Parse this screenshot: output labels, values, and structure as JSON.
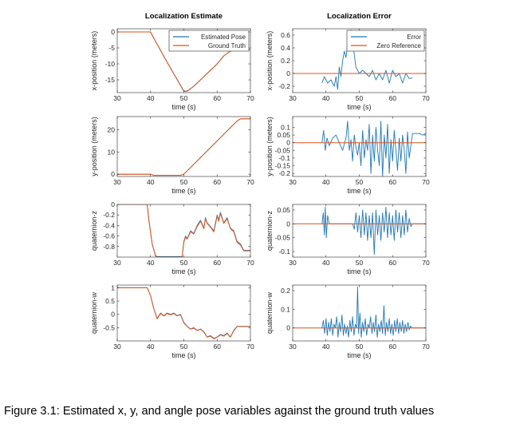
{
  "caption": "Figure 3.1: Estimated x, y, and angle pose variables against the ground truth values",
  "colors": {
    "blue": "#1f77b4",
    "orange": "#d95319",
    "axis": "#262626",
    "background": "#ffffff"
  },
  "chart_data": [
    {
      "type": "line",
      "title": "Localization Estimate",
      "xlabel": "time (s)",
      "ylabel": "x-position (meters)",
      "xlim": [
        30,
        70
      ],
      "ylim": [
        -19,
        1
      ],
      "xticks": [
        30,
        40,
        50,
        60,
        70
      ],
      "yticks": [
        0,
        -5,
        -10,
        -15
      ],
      "grid": false,
      "legend_position": "top-right",
      "series": [
        {
          "name": "Estimated Pose",
          "color": "#1f77b4",
          "x": [
            30,
            39,
            40,
            41,
            45,
            50,
            51,
            53,
            55,
            57,
            60,
            62,
            64,
            66,
            68,
            70
          ],
          "y": [
            0,
            0,
            0,
            -2,
            -9.5,
            -18.5,
            -18.5,
            -17,
            -15,
            -13,
            -10,
            -7.5,
            -6,
            -5.5,
            -5.5,
            -5.5
          ]
        },
        {
          "name": "Ground Truth",
          "color": "#d95319",
          "x": [
            30,
            39,
            40,
            41,
            45,
            50,
            51,
            53,
            55,
            57,
            60,
            62,
            64,
            66,
            68,
            70
          ],
          "y": [
            0,
            0,
            0,
            -2,
            -9.5,
            -18.6,
            -18.6,
            -17,
            -15,
            -13,
            -10,
            -7.5,
            -6,
            -5.5,
            -5.5,
            -5.5
          ]
        }
      ]
    },
    {
      "type": "line",
      "title": "Localization Error",
      "xlabel": "time (s)",
      "ylabel": "x-position (meters)",
      "xlim": [
        30,
        70
      ],
      "ylim": [
        -0.3,
        0.7
      ],
      "xticks": [
        30,
        40,
        50,
        60,
        70
      ],
      "yticks": [
        0.6,
        0.4,
        0.2,
        0,
        -0.2
      ],
      "grid": false,
      "legend_position": "top-right",
      "series": [
        {
          "name": "Error",
          "color": "#1f77b4",
          "x": [
            38.8,
            39.5,
            40.5,
            41.5,
            42.5,
            43,
            43.5,
            44,
            44.5,
            45,
            45.5,
            46,
            46.5,
            47,
            47.5,
            48,
            48.5,
            49,
            49.5,
            50,
            51,
            52,
            53,
            54,
            55,
            56,
            57,
            58,
            59,
            60,
            61,
            62,
            63,
            64,
            65,
            66
          ],
          "y": [
            -0.15,
            -0.05,
            -0.15,
            -0.1,
            -0.2,
            -0.05,
            -0.25,
            0.1,
            -0.05,
            0.2,
            0.35,
            0.25,
            0.45,
            0.55,
            0.68,
            0.5,
            0.3,
            0.1,
            0.05,
            0.0,
            0.05,
            0.0,
            -0.05,
            0.05,
            -0.1,
            0.0,
            -0.1,
            0.05,
            -0.15,
            0.05,
            -0.05,
            0.0,
            -0.15,
            0.0,
            -0.08,
            -0.07
          ]
        },
        {
          "name": "Zero Reference",
          "color": "#d95319",
          "x": [
            30,
            70
          ],
          "y": [
            0,
            0
          ]
        }
      ]
    },
    {
      "type": "line",
      "xlabel": "time (s)",
      "ylabel": "y-position (meters)",
      "xlim": [
        30,
        70
      ],
      "ylim": [
        -1,
        26
      ],
      "xticks": [
        30,
        40,
        50,
        60,
        70
      ],
      "yticks": [
        20,
        10,
        0
      ],
      "grid": false,
      "series": [
        {
          "name": "Estimated Pose",
          "color": "#1f77b4",
          "x": [
            30,
            39,
            40,
            41,
            49,
            50,
            52,
            55,
            58,
            60,
            62,
            64,
            66,
            67,
            70
          ],
          "y": [
            0,
            0,
            0,
            -0.5,
            -0.5,
            0,
            3,
            7.5,
            12,
            15,
            18,
            21,
            24,
            25,
            25
          ]
        },
        {
          "name": "Ground Truth",
          "color": "#d95319",
          "x": [
            30,
            39,
            40,
            41,
            49,
            50,
            52,
            55,
            58,
            60,
            62,
            64,
            66,
            67,
            70
          ],
          "y": [
            0,
            0,
            0,
            -0.5,
            -0.5,
            0,
            3,
            7.5,
            12,
            15,
            18,
            21,
            24,
            25,
            25
          ]
        }
      ]
    },
    {
      "type": "line",
      "xlabel": "time (s)",
      "ylabel": "y-position (meters)",
      "xlim": [
        30,
        70
      ],
      "ylim": [
        -0.22,
        0.17
      ],
      "xticks": [
        30,
        40,
        50,
        60,
        70
      ],
      "yticks": [
        0.1,
        0.05,
        0,
        -0.05,
        -0.1,
        -0.15,
        -0.2
      ],
      "grid": false,
      "series": [
        {
          "name": "Error",
          "color": "#1f77b4",
          "x": [
            38.8,
            39.3,
            39.8,
            40.3,
            41,
            42,
            43,
            44,
            45,
            46,
            46.5,
            47,
            47.5,
            48,
            48.5,
            49,
            49.5,
            50,
            50.5,
            51,
            51.5,
            52,
            52.5,
            53,
            53.5,
            54,
            54.5,
            55,
            55.5,
            56,
            56.5,
            57,
            57.5,
            58,
            58.5,
            59,
            59.5,
            60,
            60.5,
            61,
            61.5,
            62,
            62.5,
            63,
            63.5,
            64,
            64.5,
            65,
            65.5,
            66,
            67,
            68,
            69,
            70
          ],
          "y": [
            0.0,
            0.08,
            -0.05,
            0.03,
            -0.02,
            0.03,
            0.05,
            0.0,
            -0.05,
            0.03,
            0.14,
            -0.05,
            0.02,
            -0.12,
            0.05,
            -0.03,
            -0.08,
            0.0,
            -0.15,
            0.08,
            -0.1,
            0.02,
            -0.05,
            0.12,
            -0.2,
            0.05,
            -0.12,
            0.1,
            -0.05,
            -0.15,
            0.14,
            -0.22,
            0.05,
            -0.1,
            0.12,
            -0.2,
            0.02,
            -0.12,
            0.08,
            -0.05,
            -0.18,
            0.03,
            -0.12,
            0.05,
            -0.05,
            -0.2,
            0.07,
            -0.1,
            -0.02,
            0.06,
            0.06,
            0.06,
            0.05,
            0.06
          ]
        },
        {
          "name": "Zero Reference",
          "color": "#d95319",
          "x": [
            30,
            70
          ],
          "y": [
            0,
            0
          ]
        }
      ]
    },
    {
      "type": "line",
      "xlabel": "time (s)",
      "ylabel": "quaternion-z",
      "xlim": [
        30,
        70
      ],
      "ylim": [
        -1,
        0
      ],
      "xticks": [
        30,
        40,
        50,
        60,
        70
      ],
      "yticks": [
        0,
        -0.2,
        -0.4,
        -0.6,
        -0.8
      ],
      "grid": false,
      "series": [
        {
          "name": "Estimated Pose",
          "color": "#1f77b4",
          "x": [
            30,
            39,
            39.5,
            40.5,
            41.5,
            42,
            49.5,
            50,
            50.5,
            51,
            52,
            53,
            54,
            55,
            56,
            56.5,
            57,
            58,
            59,
            60,
            60.5,
            61,
            62,
            63,
            64,
            65,
            66,
            67,
            68,
            70
          ],
          "y": [
            0,
            0,
            -0.3,
            -0.75,
            -0.97,
            -0.99,
            -0.99,
            -0.7,
            -0.6,
            -0.65,
            -0.5,
            -0.55,
            -0.4,
            -0.3,
            -0.45,
            -0.25,
            -0.35,
            -0.42,
            -0.5,
            -0.2,
            -0.3,
            -0.15,
            -0.35,
            -0.25,
            -0.45,
            -0.5,
            -0.7,
            -0.75,
            -0.87,
            -0.87
          ]
        },
        {
          "name": "Ground Truth",
          "color": "#d95319",
          "x": [
            30,
            39,
            39.5,
            40.5,
            41.5,
            42,
            49.5,
            50,
            50.5,
            51,
            52,
            53,
            54,
            55,
            56,
            56.5,
            57,
            58,
            59,
            60,
            60.5,
            61,
            62,
            63,
            64,
            65,
            66,
            67,
            68,
            70
          ],
          "y": [
            0,
            0,
            -0.3,
            -0.75,
            -0.98,
            -1,
            -1,
            -0.72,
            -0.62,
            -0.66,
            -0.52,
            -0.56,
            -0.42,
            -0.32,
            -0.46,
            -0.27,
            -0.36,
            -0.43,
            -0.52,
            -0.22,
            -0.32,
            -0.17,
            -0.36,
            -0.27,
            -0.46,
            -0.52,
            -0.72,
            -0.77,
            -0.88,
            -0.88
          ]
        }
      ]
    },
    {
      "type": "line",
      "xlabel": "time (s)",
      "ylabel": "quaternion-z",
      "xlim": [
        30,
        70
      ],
      "ylim": [
        -0.12,
        0.07
      ],
      "xticks": [
        30,
        40,
        50,
        60,
        70
      ],
      "yticks": [
        0.05,
        0,
        -0.05,
        -0.1
      ],
      "grid": false,
      "series": [
        {
          "name": "Error",
          "color": "#1f77b4",
          "x": [
            38.8,
            39.2,
            39.5,
            39.8,
            40.1,
            40.5,
            41,
            42,
            43,
            44,
            45,
            46,
            47,
            48,
            48.5,
            49,
            49.5,
            50,
            50.5,
            51,
            51.5,
            52,
            52.5,
            53,
            53.5,
            54,
            54.5,
            55,
            55.5,
            56,
            56.5,
            57,
            57.5,
            58,
            58.5,
            59,
            59.5,
            60,
            60.5,
            61,
            61.5,
            62,
            62.5,
            63,
            63.5,
            64,
            64.5,
            65,
            65.5,
            66,
            70
          ],
          "y": [
            0.0,
            0.04,
            -0.04,
            0.06,
            -0.05,
            0.03,
            0.0,
            0.0,
            0.0,
            0.0,
            0.0,
            0.0,
            0.0,
            0.0,
            -0.02,
            0.04,
            -0.03,
            0.03,
            -0.05,
            0.05,
            -0.04,
            0.04,
            -0.06,
            0.03,
            -0.05,
            0.04,
            -0.11,
            0.05,
            -0.04,
            0.03,
            -0.06,
            0.04,
            -0.03,
            0.06,
            -0.05,
            0.04,
            -0.04,
            0.03,
            -0.06,
            0.05,
            -0.03,
            0.04,
            -0.05,
            0.03,
            -0.04,
            0.05,
            -0.03,
            0.02,
            -0.01,
            0.0,
            0.0
          ]
        },
        {
          "name": "Zero Reference",
          "color": "#d95319",
          "x": [
            30,
            70
          ],
          "y": [
            0,
            0
          ]
        }
      ]
    },
    {
      "type": "line",
      "xlabel": "time (s)",
      "ylabel": "quaternion-w",
      "xlim": [
        30,
        70
      ],
      "ylim": [
        -1,
        1.1
      ],
      "xticks": [
        30,
        40,
        50,
        60,
        70
      ],
      "yticks": [
        1,
        0.5,
        0,
        -0.5
      ],
      "grid": false,
      "series": [
        {
          "name": "Estimated Pose",
          "color": "#1f77b4",
          "x": [
            30,
            39,
            40,
            41,
            42,
            43,
            44,
            45,
            46,
            47,
            48,
            49,
            50,
            51,
            52,
            53,
            54,
            55,
            56,
            57,
            58,
            59,
            60,
            61,
            62,
            63,
            64,
            65,
            66,
            67,
            70
          ],
          "y": [
            1,
            1,
            0.7,
            0.2,
            -0.15,
            0.05,
            -0.05,
            0.05,
            0.0,
            0.05,
            -0.05,
            0.0,
            -0.3,
            -0.45,
            -0.55,
            -0.5,
            -0.6,
            -0.55,
            -0.65,
            -0.85,
            -0.8,
            -0.9,
            -0.85,
            -0.75,
            -0.8,
            -0.7,
            -0.85,
            -0.6,
            -0.45,
            -0.45,
            -0.45
          ]
        },
        {
          "name": "Ground Truth",
          "color": "#d95319",
          "x": [
            30,
            39,
            40,
            41,
            42,
            43,
            44,
            45,
            46,
            47,
            48,
            49,
            50,
            51,
            52,
            53,
            54,
            55,
            56,
            57,
            58,
            59,
            60,
            61,
            62,
            63,
            64,
            65,
            66,
            67,
            70
          ],
          "y": [
            1,
            1,
            0.7,
            0.2,
            -0.17,
            0.03,
            -0.06,
            0.03,
            -0.02,
            0.03,
            -0.06,
            -0.02,
            -0.32,
            -0.46,
            -0.56,
            -0.52,
            -0.61,
            -0.56,
            -0.66,
            -0.86,
            -0.82,
            -0.92,
            -0.86,
            -0.77,
            -0.82,
            -0.72,
            -0.86,
            -0.62,
            -0.46,
            -0.46,
            -0.46
          ]
        }
      ]
    },
    {
      "type": "line",
      "xlabel": "time (s)",
      "ylabel": "quaternion-w",
      "xlim": [
        30,
        70
      ],
      "ylim": [
        -0.07,
        0.23
      ],
      "xticks": [
        30,
        40,
        50,
        60,
        70
      ],
      "yticks": [
        0.2,
        0.1,
        0
      ],
      "grid": false,
      "series": [
        {
          "name": "Error",
          "color": "#1f77b4",
          "x": [
            38.8,
            39.2,
            39.6,
            40,
            40.4,
            40.8,
            41.2,
            41.6,
            42,
            42.4,
            42.8,
            43.2,
            43.6,
            44,
            44.4,
            44.8,
            45.2,
            45.6,
            46,
            46.4,
            46.8,
            47.2,
            47.6,
            48,
            48.4,
            48.8,
            49.2,
            49.5,
            49.8,
            50.2,
            50.6,
            51,
            51.4,
            51.8,
            52.2,
            52.6,
            53,
            53.4,
            53.8,
            54.2,
            54.6,
            55,
            55.4,
            55.8,
            56.2,
            56.6,
            57,
            57.4,
            57.8,
            58.2,
            58.6,
            59,
            59.4,
            59.8,
            60.2,
            60.6,
            61,
            61.4,
            61.8,
            62.2,
            62.6,
            63,
            63.4,
            63.8,
            64.2,
            64.6,
            65,
            65.4,
            65.8,
            66.5,
            70
          ],
          "y": [
            0.0,
            0.04,
            -0.03,
            0.05,
            -0.04,
            0.03,
            -0.02,
            0.05,
            -0.04,
            0.02,
            0.0,
            0.06,
            -0.05,
            0.03,
            -0.02,
            0.07,
            -0.04,
            0.02,
            -0.03,
            0.01,
            -0.05,
            0.04,
            -0.02,
            0.06,
            -0.04,
            0.02,
            0.0,
            0.22,
            -0.03,
            0.08,
            -0.05,
            0.03,
            -0.02,
            0.05,
            -0.04,
            0.02,
            0.0,
            0.06,
            -0.03,
            0.03,
            -0.02,
            0.07,
            -0.05,
            0.02,
            -0.02,
            0.04,
            -0.03,
            0.12,
            -0.04,
            0.03,
            -0.02,
            0.05,
            -0.03,
            0.02,
            -0.04,
            0.04,
            -0.02,
            0.05,
            -0.03,
            0.03,
            -0.02,
            0.04,
            -0.03,
            0.02,
            -0.02,
            0.03,
            -0.01,
            0.01,
            0.0,
            0.0,
            0.0
          ]
        },
        {
          "name": "Zero Reference",
          "color": "#d95319",
          "x": [
            30,
            70
          ],
          "y": [
            0,
            0
          ]
        }
      ]
    }
  ]
}
